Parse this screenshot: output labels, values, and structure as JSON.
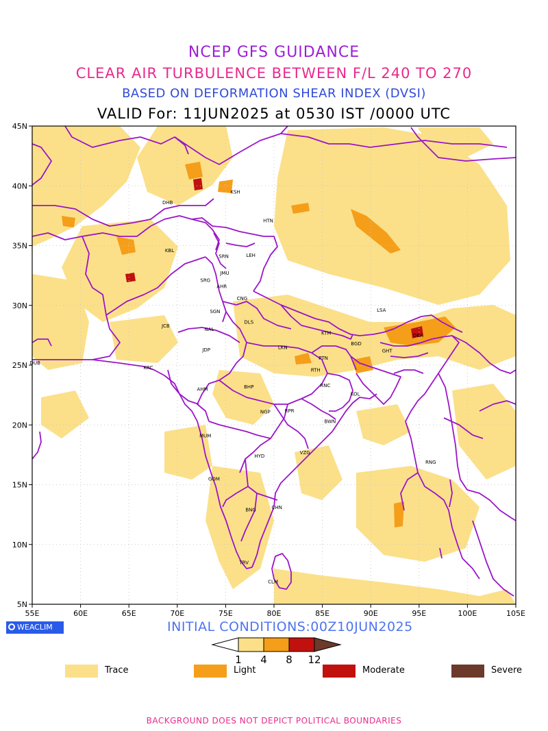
{
  "titles": {
    "line1": "NCEP GFS GUIDANCE",
    "line2": "CLEAR AIR TURBULENCE BETWEEN F/L 240 TO 270",
    "line3": "BASED ON DEFORMATION SHEAR INDEX (DVSI)",
    "line4": "VALID For: 11JUN2025 at 0530 IST /0000 UTC"
  },
  "colors": {
    "line1": "#9b1fd6",
    "line2": "#e8298c",
    "line3": "#2f4bd8",
    "boundary": "#9a14c8",
    "trace": "#fbe089",
    "light": "#f59e1a",
    "moderate": "#c0110f",
    "severe": "#6b3a2a",
    "badge": "#2a5be8",
    "footer": "#e8298c"
  },
  "axes": {
    "lat_labels": [
      "45N",
      "40N",
      "35N",
      "30N",
      "25N",
      "20N",
      "15N",
      "10N",
      "5N"
    ],
    "lon_labels": [
      "55E",
      "60E",
      "65E",
      "70E",
      "75E",
      "80E",
      "85E",
      "90E",
      "95E",
      "100E",
      "105E"
    ],
    "lon_range": [
      55,
      105
    ],
    "lat_range": [
      5,
      45
    ]
  },
  "cities": [
    {
      "name": "DHB",
      "lon": 69.0,
      "lat": 38.6
    },
    {
      "name": "KSH",
      "lon": 76.0,
      "lat": 39.5
    },
    {
      "name": "HTN",
      "lon": 79.4,
      "lat": 37.1
    },
    {
      "name": "KBL",
      "lon": 69.2,
      "lat": 34.6
    },
    {
      "name": "SRN",
      "lon": 74.8,
      "lat": 34.1
    },
    {
      "name": "LEH",
      "lon": 77.6,
      "lat": 34.2
    },
    {
      "name": "JMU",
      "lon": 74.9,
      "lat": 32.7
    },
    {
      "name": "SRG",
      "lon": 72.9,
      "lat": 32.1
    },
    {
      "name": "AHR",
      "lon": 74.6,
      "lat": 31.6
    },
    {
      "name": "CNG",
      "lon": 76.7,
      "lat": 30.6
    },
    {
      "name": "LSA",
      "lon": 91.1,
      "lat": 29.6
    },
    {
      "name": "SGN",
      "lon": 73.9,
      "lat": 29.5
    },
    {
      "name": "DLS",
      "lon": 77.4,
      "lat": 28.6
    },
    {
      "name": "JCB",
      "lon": 68.8,
      "lat": 28.3
    },
    {
      "name": "NAL",
      "lon": 73.3,
      "lat": 28.0
    },
    {
      "name": "KTM",
      "lon": 85.4,
      "lat": 27.7
    },
    {
      "name": "DBA",
      "lon": 94.9,
      "lat": 27.5
    },
    {
      "name": "BGD",
      "lon": 88.5,
      "lat": 26.8
    },
    {
      "name": "GHT",
      "lon": 91.7,
      "lat": 26.2
    },
    {
      "name": "JDP",
      "lon": 73.0,
      "lat": 26.3
    },
    {
      "name": "LKN",
      "lon": 80.9,
      "lat": 26.5
    },
    {
      "name": "PTN",
      "lon": 85.1,
      "lat": 25.6
    },
    {
      "name": "DUB",
      "lon": 55.3,
      "lat": 25.2
    },
    {
      "name": "KRC",
      "lon": 67.0,
      "lat": 24.8
    },
    {
      "name": "RTH",
      "lon": 84.3,
      "lat": 24.6
    },
    {
      "name": "AHM",
      "lon": 72.6,
      "lat": 23.0
    },
    {
      "name": "BHP",
      "lon": 77.4,
      "lat": 23.2
    },
    {
      "name": "RNC",
      "lon": 85.3,
      "lat": 23.3
    },
    {
      "name": "KOL",
      "lon": 88.4,
      "lat": 22.6
    },
    {
      "name": "NGP",
      "lon": 79.1,
      "lat": 21.1
    },
    {
      "name": "RPR",
      "lon": 81.6,
      "lat": 21.2
    },
    {
      "name": "BWN",
      "lon": 85.8,
      "lat": 20.3
    },
    {
      "name": "MUM",
      "lon": 72.9,
      "lat": 19.1
    },
    {
      "name": "HYD",
      "lon": 78.5,
      "lat": 17.4
    },
    {
      "name": "VZG",
      "lon": 83.2,
      "lat": 17.7
    },
    {
      "name": "RNG",
      "lon": 96.2,
      "lat": 16.9
    },
    {
      "name": "GOM",
      "lon": 73.8,
      "lat": 15.5
    },
    {
      "name": "CHN",
      "lon": 80.3,
      "lat": 13.1
    },
    {
      "name": "BNG",
      "lon": 77.6,
      "lat": 12.9
    },
    {
      "name": "TRV",
      "lon": 76.9,
      "lat": 8.5
    },
    {
      "name": "CLM",
      "lon": 79.9,
      "lat": 6.9
    }
  ],
  "badge": {
    "label": "WEACLIM"
  },
  "initial_conditions": "INITIAL CONDITIONS:00Z10JUN2025",
  "colorbar": {
    "ticks": [
      "1",
      "4",
      "8",
      "12"
    ]
  },
  "legend": [
    {
      "label": "Trace",
      "color": "#fbe089"
    },
    {
      "label": "Light",
      "color": "#f59e1a"
    },
    {
      "label": "Moderate",
      "color": "#c0110f"
    },
    {
      "label": "Severe",
      "color": "#6b3a2a"
    }
  ],
  "footer": "BACKGROUND DOES NOT DEPICT POLITICAL BOUNDARIES"
}
